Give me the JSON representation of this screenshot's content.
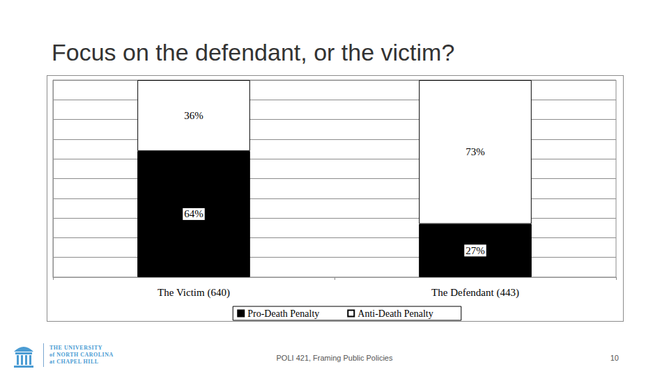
{
  "slide": {
    "title": "Focus on the defendant, or the victim?",
    "footer": "POLI 421, Framing Public Policies",
    "page": "10",
    "logo": [
      "THE UNIVERSITY",
      "of NORTH CAROLINA",
      "at CHAPEL HILL"
    ]
  },
  "chart_data": {
    "type": "bar",
    "categories": [
      "The Victim (640)",
      "The Defendant (443)"
    ],
    "series": [
      {
        "name": "Pro-Death Penalty",
        "color": "#000000",
        "values": [
          64,
          27
        ],
        "value_labels": [
          "64%",
          "27%"
        ]
      },
      {
        "name": "Anti-Death Penalty",
        "color": "#ffffff",
        "values": [
          36,
          73
        ],
        "value_labels": [
          "36%",
          "73%"
        ]
      }
    ],
    "stacked": true,
    "ylim": [
      0,
      100
    ],
    "yticks": [
      0,
      10,
      20,
      30,
      40,
      50,
      60,
      70,
      80,
      90,
      100
    ],
    "grid": true,
    "legend": "bottom",
    "data_labels": true,
    "tick_labels": "x"
  }
}
